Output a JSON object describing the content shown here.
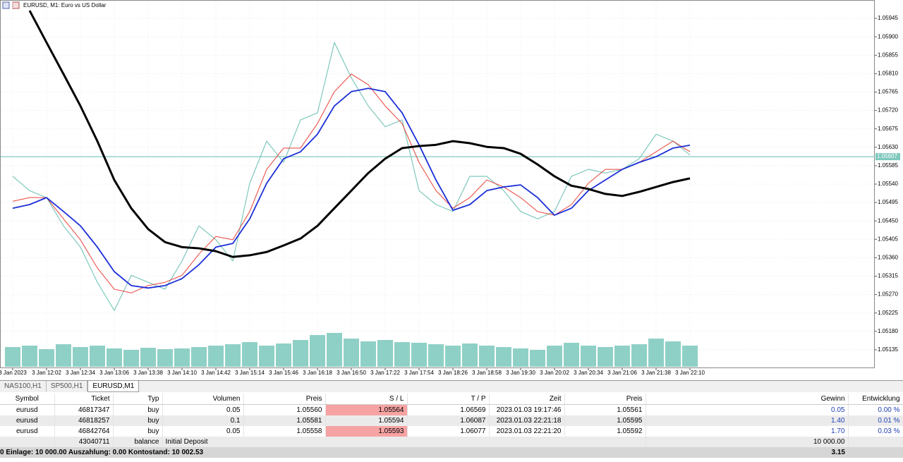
{
  "header": {
    "title": "EURUSD, M1:  Euro vs US Dollar"
  },
  "chart_data": {
    "type": "line",
    "x": [
      "11:30",
      "11:46",
      "12:02",
      "12:18",
      "12:34",
      "12:50",
      "13:06",
      "13:22",
      "13:38",
      "13:54",
      "14:10",
      "14:26",
      "14:42",
      "14:58",
      "15:14",
      "15:30",
      "15:46",
      "16:02",
      "16:18",
      "16:34",
      "16:50",
      "17:06",
      "17:22",
      "17:38",
      "17:54",
      "18:10",
      "18:26",
      "18:42",
      "18:58",
      "19:14",
      "19:30",
      "19:46",
      "20:02",
      "20:18",
      "20:34",
      "20:50",
      "21:06",
      "21:22",
      "21:38",
      "21:54",
      "22:10"
    ],
    "series": [
      {
        "color": "#7ec8bd",
        "width": 1.2,
        "values": [
          1.05559,
          1.05524,
          1.05507,
          1.05438,
          1.05386,
          1.053,
          1.05231,
          1.05317,
          1.053,
          1.05283,
          1.05352,
          1.05438,
          1.05404,
          1.05352,
          1.05542,
          1.05645,
          1.05593,
          1.05697,
          1.05714,
          1.05886,
          1.058,
          1.05731,
          1.0568,
          1.05697,
          1.05524,
          1.0549,
          1.05473,
          1.05559,
          1.05559,
          1.05524,
          1.05473,
          1.05455,
          1.05473,
          1.05559,
          1.05576,
          1.05567,
          1.05576,
          1.05602,
          1.05662,
          1.05645,
          1.05611
        ]
      },
      {
        "color": "#e8423a",
        "width": 1,
        "values": [
          1.05498,
          1.05507,
          1.05507,
          1.05455,
          1.05404,
          1.05335,
          1.05283,
          1.05274,
          1.05292,
          1.053,
          1.05317,
          1.05369,
          1.05412,
          1.05404,
          1.05473,
          1.05576,
          1.05628,
          1.05628,
          1.05688,
          1.05766,
          1.05809,
          1.05783,
          1.05731,
          1.05688,
          1.05593,
          1.05524,
          1.05481,
          1.05507,
          1.0555,
          1.05533,
          1.05507,
          1.05473,
          1.05464,
          1.0549,
          1.05542,
          1.05576,
          1.05576,
          1.05593,
          1.05619,
          1.05645,
          1.05619
        ]
      },
      {
        "color": "#1c2fd8",
        "width": 1.8,
        "values": [
          1.05481,
          1.0549,
          1.05507,
          1.05473,
          1.05438,
          1.05386,
          1.05326,
          1.05292,
          1.05286,
          1.05292,
          1.05309,
          1.05343,
          1.05386,
          1.05395,
          1.05455,
          1.05542,
          1.05602,
          1.05619,
          1.05662,
          1.05731,
          1.05766,
          1.05774,
          1.05766,
          1.05714,
          1.05636,
          1.0555,
          1.05476,
          1.0549,
          1.05524,
          1.05533,
          1.05538,
          1.05507,
          1.05464,
          1.05481,
          1.05524,
          1.0555,
          1.05576,
          1.05593,
          1.05607,
          1.05628,
          1.05635
        ]
      },
      {
        "color": "#000000",
        "width": 3,
        "values": [
          null,
          1.05964,
          1.05886,
          1.05809,
          1.05731,
          1.05645,
          1.0555,
          1.05481,
          1.0543,
          1.05398,
          1.05386,
          1.05383,
          1.05376,
          1.05362,
          1.05366,
          1.05374,
          1.0539,
          1.05407,
          1.05438,
          1.05481,
          1.05524,
          1.05567,
          1.05602,
          1.05628,
          1.05633,
          1.05636,
          1.05645,
          1.0564,
          1.05631,
          1.05628,
          1.05614,
          1.05588,
          1.05559,
          1.05536,
          1.05528,
          1.05516,
          1.05511,
          1.05521,
          1.05533,
          1.05545,
          1.05554
        ]
      }
    ],
    "volume": [
      28,
      30,
      25,
      32,
      28,
      30,
      26,
      24,
      27,
      25,
      26,
      28,
      30,
      32,
      35,
      30,
      33,
      38,
      45,
      48,
      40,
      36,
      38,
      35,
      34,
      32,
      30,
      33,
      30,
      28,
      26,
      24,
      30,
      34,
      30,
      28,
      30,
      32,
      40,
      36,
      30
    ],
    "volume_color": "#8fd0c6",
    "ylim": [
      1.0509,
      1.0599
    ],
    "yticks": [
      1.05945,
      {
        "value": 1.059,
        "label": "1.05900"
      },
      1.05855,
      {
        "value": 1.0581,
        "label": "1.05810"
      },
      1.05765,
      {
        "value": 1.0572,
        "label": "1.05720"
      },
      1.05675,
      {
        "value": 1.0563,
        "label": "1.05630"
      },
      1.05585,
      {
        "value": 1.0554,
        "label": "1.05540"
      },
      1.05495,
      {
        "value": 1.0545,
        "label": "1.05450"
      },
      1.05405,
      {
        "value": 1.0536,
        "label": "1.05360"
      },
      1.05315,
      {
        "value": 1.0527,
        "label": "1.05270"
      },
      1.05225,
      {
        "value": 1.0518,
        "label": "1.05180"
      },
      1.05135
    ],
    "xticks": [
      {
        "value": "11:30",
        "label": "3 Jan 2023"
      },
      {
        "value": "12:02",
        "label": "3 Jan 12:02"
      },
      {
        "value": "12:34",
        "label": "3 Jan 12:34"
      },
      {
        "value": "13:06",
        "label": "3 Jan 13:06"
      },
      {
        "value": "13:38",
        "label": "3 Jan 13:38"
      },
      {
        "value": "14:10",
        "label": "3 Jan 14:10"
      },
      {
        "value": "14:42",
        "label": "3 Jan 14:42"
      },
      {
        "value": "15:14",
        "label": "3 Jan 15:14"
      },
      {
        "value": "15:46",
        "label": "3 Jan 15:46"
      },
      {
        "value": "16:18",
        "label": "3 Jan 16:18"
      },
      {
        "value": "16:50",
        "label": "3 Jan 16:50"
      },
      {
        "value": "17:22",
        "label": "3 Jan 17:22"
      },
      {
        "value": "17:54",
        "label": "3 Jan 17:54"
      },
      {
        "value": "18:26",
        "label": "3 Jan 18:26"
      },
      {
        "value": "18:58",
        "label": "3 Jan 18:58"
      },
      {
        "value": "19:30",
        "label": "3 Jan 19:30"
      },
      {
        "value": "20:02",
        "label": "3 Jan 20:02"
      },
      {
        "value": "20:34",
        "label": "3 Jan 20:34"
      },
      {
        "value": "21:06",
        "label": "3 Jan 21:06"
      },
      {
        "value": "21:38",
        "label": "3 Jan 21:38"
      },
      {
        "value": "22:10",
        "label": "3 Jan 22:10"
      }
    ],
    "current_price": 1.05607,
    "current_price_color": "#7ec8bd",
    "grid": true
  },
  "tabs": [
    "NAS100,H1",
    "SP500,H1",
    "EURUSD,M1"
  ],
  "table": {
    "columns": [
      "Symbol",
      "Ticket",
      "Typ",
      "Volumen",
      "Preis",
      "S / L",
      "T / P",
      "Zeit",
      "Preis",
      "Gewinn",
      "Entwicklung"
    ],
    "rows": [
      [
        "eurusd",
        "46817347",
        "buy",
        "0.05",
        "1.05560",
        "1.05564",
        "1.06569",
        "2023.01.03 19:17:46",
        "1.05561",
        "0.05",
        "0.00 %"
      ],
      [
        "eurusd",
        "46818257",
        "buy",
        "0.1",
        "1.05581",
        "1.05594",
        "1.06087",
        "2023.01.03 22:21:18",
        "1.05595",
        "1.40",
        "0.01 %"
      ],
      [
        "eurusd",
        "46842764",
        "buy",
        "0.05",
        "1.05558",
        "1.05593",
        "1.06077",
        "2023.01.03 22:21:20",
        "1.05592",
        "1.70",
        "0.03 %"
      ]
    ],
    "balance_row": {
      "ticket": "43040711",
      "type": "balance",
      "comment": "Initial Deposit",
      "amount": "10 000.00"
    },
    "footer": {
      "summary": "0 Einlage: 10 000.00  Auszahlung: 0.00  Kontostand: 10 002.53",
      "total": "3.15"
    }
  }
}
